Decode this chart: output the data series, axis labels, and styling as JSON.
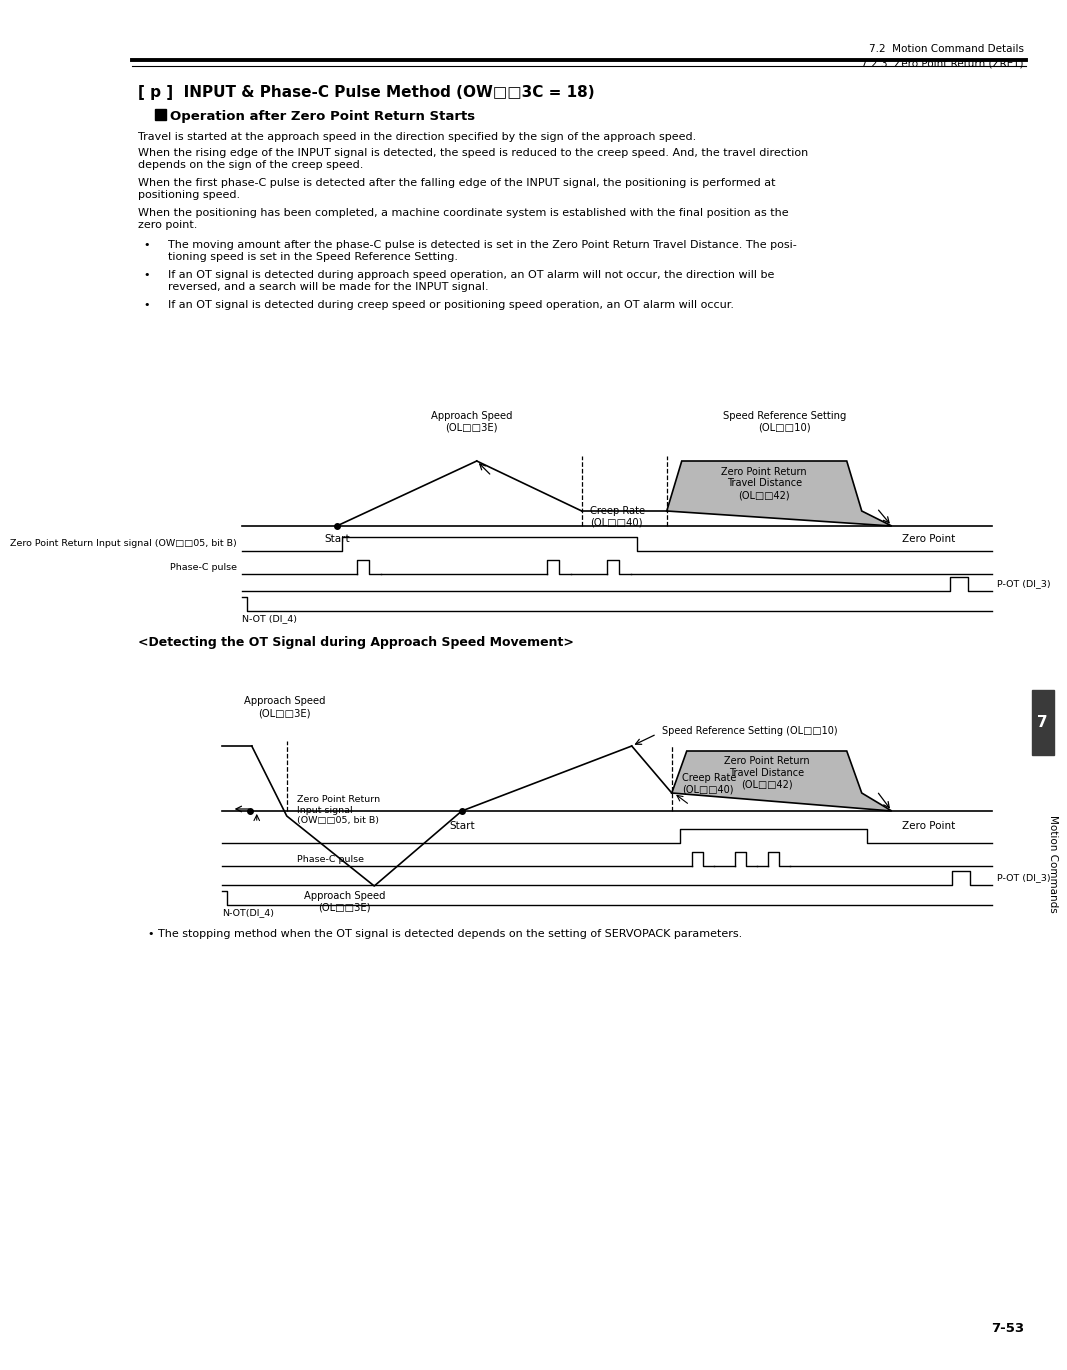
{
  "page_header_right1": "7.2  Motion Command Details",
  "page_header_right2": "7.2.3  Zero Point Return (ZRET)",
  "title": "[ p ]  INPUT & Phase-C Pulse Method (OW□□3C = 18)",
  "section_header": "Operation after Zero Point Return Starts",
  "body_texts": [
    "Travel is started at the approach speed in the direction specified by the sign of the approach speed.",
    "When the rising edge of the INPUT signal is detected, the speed is reduced to the creep speed. And, the travel direction\ndepends on the sign of the creep speed.",
    "When the first phase-C pulse is detected after the falling edge of the INPUT signal, the positioning is performed at\npositioning speed.",
    "When the positioning has been completed, a machine coordinate system is established with the final position as the\nzero point."
  ],
  "bullet_texts": [
    "The moving amount after the phase-C pulse is detected is set in the Zero Point Return Travel Distance. The posi-\ntioning speed is set in the Speed Reference Setting.",
    "If an OT signal is detected during approach speed operation, an OT alarm will not occur, the direction will be\nreversed, and a search will be made for the INPUT signal.",
    "If an OT signal is detected during creep speed or positioning speed operation, an OT alarm will occur."
  ],
  "diagram1_labels": {
    "approach_speed": "Approach Speed\n(OL□□3E)",
    "creep_rate": "Creep Rate\n(OL□□40)",
    "speed_ref": "Speed Reference Setting\n(OL□□10)",
    "zp_travel": "Zero Point Return\nTravel Distance\n(OL□□42)",
    "start": "Start",
    "zero_point": "Zero Point",
    "input_signal": "Zero Point Return Input signal (OW□□05, bit B)",
    "phase_c": "Phase-C pulse",
    "p_ot": "P-OT (DI_3)",
    "n_ot": "N-OT (DI_4)"
  },
  "diagram2_title": "<Detecting the OT Signal during Approach Speed Movement>",
  "diagram2_labels": {
    "approach_speed_top": "Approach Speed\n(OL□□3E)",
    "approach_speed_bot": "Approach Speed\n(OL□□3E)",
    "creep_rate": "Creep Rate\n(OL□□40)",
    "speed_ref": "Speed Reference Setting (OL□□10)",
    "zp_travel": "Zero Point Return\nTravel Distance\n(OL□□42)",
    "start": "Start",
    "zero_point": "Zero Point",
    "input_signal": "Zero Point Return\nInput signal\n(OW□□05, bit B)",
    "phase_c": "Phase-C pulse",
    "p_ot": "P-OT (DI_3)",
    "n_ot": "N-OT(DI_4)"
  },
  "footer_bullet": "The stopping method when the OT signal is detected depends on the setting of SERVOPACK parameters.",
  "side_label": "Motion Commands",
  "page_number": "7-53",
  "tab_number": "7",
  "bg_color": "#ffffff",
  "diagram_fill_color": "#b8b8b8",
  "line_color": "#000000"
}
